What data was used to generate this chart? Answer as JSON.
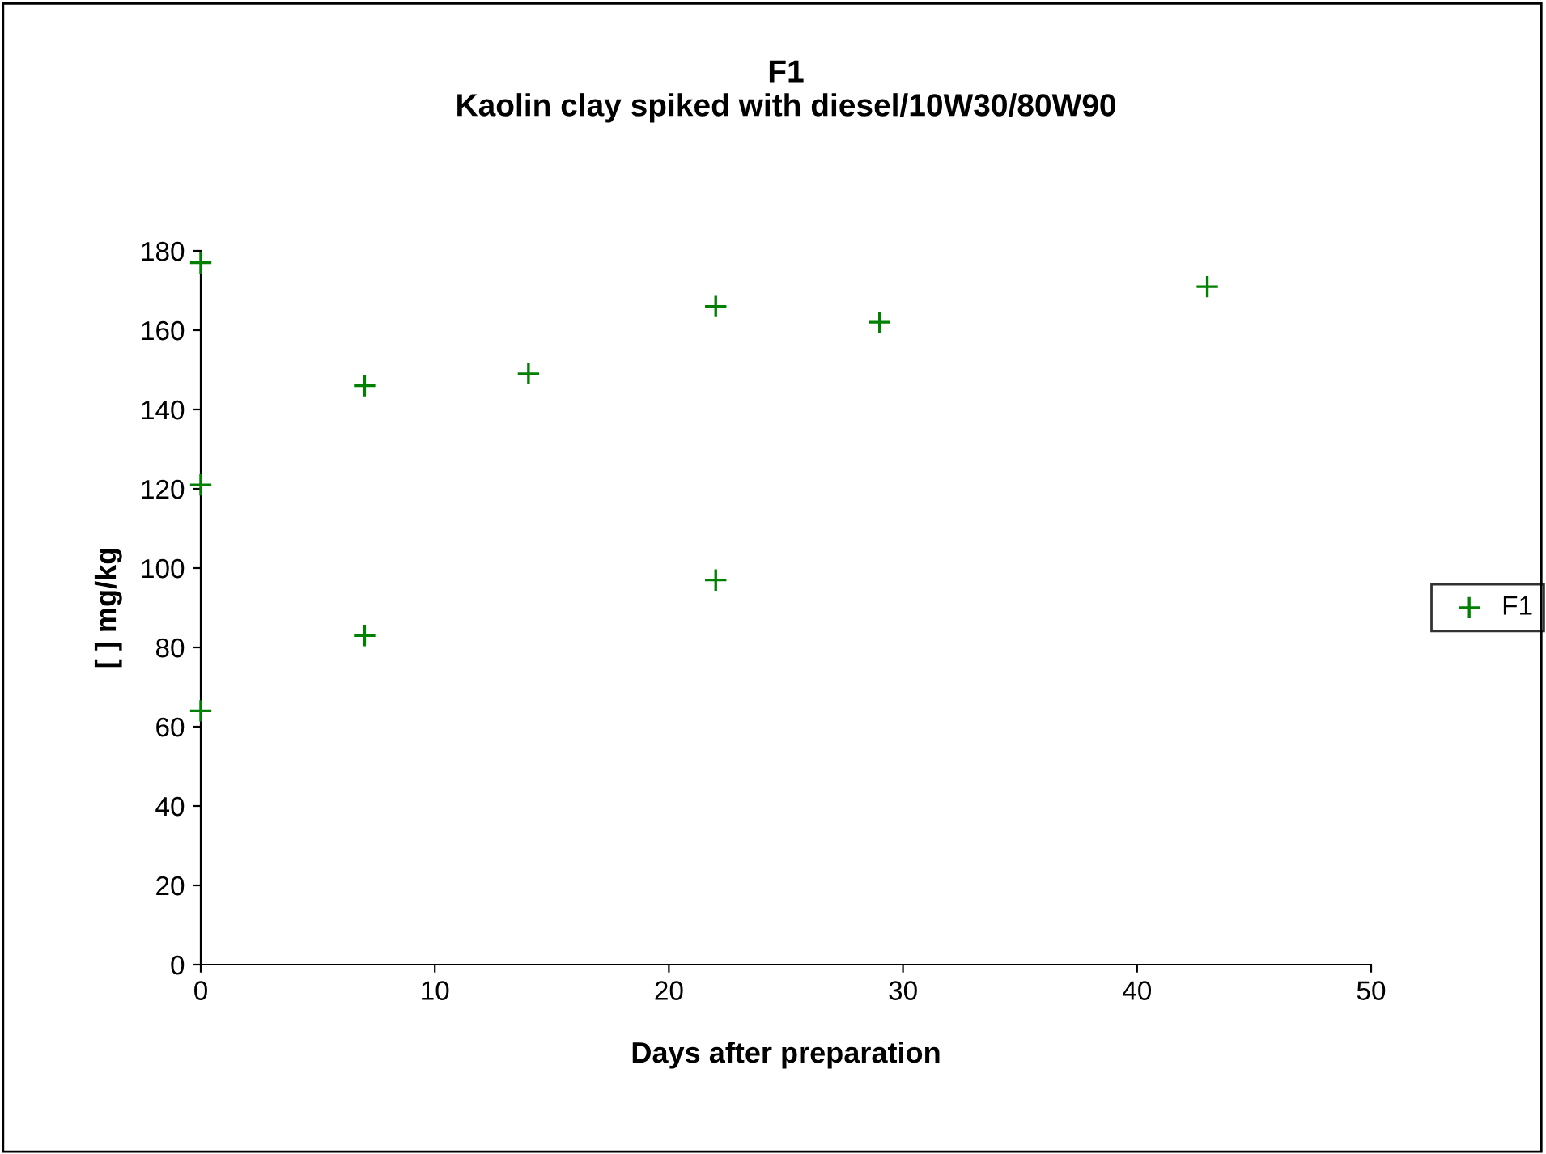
{
  "chart_data": {
    "type": "scatter",
    "title": "F1\nKaolin clay spiked with diesel/10W30/80W90",
    "xlabel": "Days after preparation",
    "ylabel": "[ ] mg/kg",
    "series": [
      {
        "name": "F1",
        "color": "#008000",
        "x": [
          0,
          0,
          0,
          7,
          7,
          14,
          22,
          22,
          29,
          43
        ],
        "values": [
          177,
          121,
          64,
          146,
          83,
          149,
          166,
          97,
          162,
          171
        ]
      }
    ],
    "marker": "cross",
    "legend": "right",
    "grid": false,
    "xlim": [
      0,
      50
    ],
    "xticks": [
      0,
      10,
      20,
      30,
      40,
      50
    ],
    "ylim": [
      0,
      180
    ],
    "yticks": [
      0,
      20,
      40,
      60,
      80,
      100,
      120,
      140,
      160,
      180
    ]
  }
}
